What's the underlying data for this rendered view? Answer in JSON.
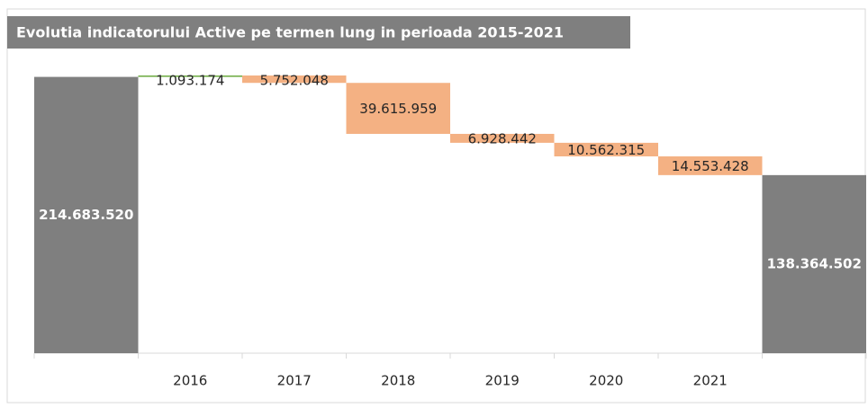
{
  "chart_data": {
    "type": "waterfall",
    "title": "Evolutia indicatorului Active pe termen lung in perioada 2015-2021",
    "categories": [
      null,
      "2016",
      "2017",
      "2018",
      "2019",
      "2020",
      "2021",
      null
    ],
    "values": [
      214683520,
      1093174,
      -5752048,
      -39615959,
      -6928442,
      -10562315,
      -14553428,
      138364502
    ],
    "value_labels": [
      "214.683.520",
      "1.093.174",
      "5.752.048",
      "39.615.959",
      "6.928.442",
      "10.562.315",
      "14.553.428",
      "138.364.502"
    ],
    "totals": [
      true,
      false,
      false,
      false,
      false,
      false,
      false,
      true
    ],
    "colors": {
      "total": "#7f7f7f",
      "increase": "#70ad47",
      "decrease": "#f4b183"
    }
  }
}
